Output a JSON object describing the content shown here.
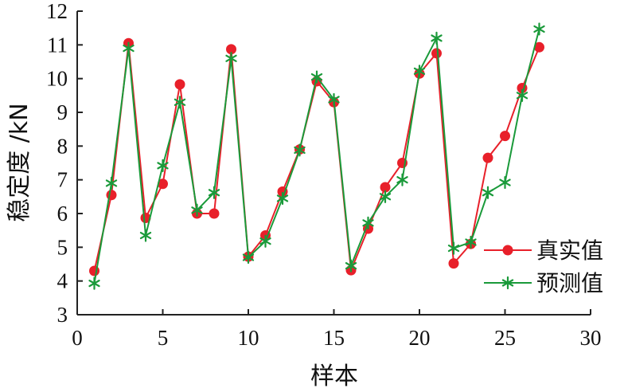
{
  "chart_data": {
    "type": "line",
    "xlabel": "样本",
    "ylabel": "稳定度 /kN",
    "xlim": [
      0,
      30
    ],
    "ylim": [
      3,
      12
    ],
    "xticks": [
      0,
      5,
      10,
      15,
      20,
      25,
      30
    ],
    "yticks": [
      3,
      4,
      5,
      6,
      7,
      8,
      9,
      10,
      11,
      12
    ],
    "grid": false,
    "legend_position": "bottom-right",
    "x": [
      1,
      2,
      3,
      4,
      5,
      6,
      7,
      8,
      9,
      10,
      11,
      12,
      13,
      14,
      15,
      16,
      17,
      18,
      19,
      20,
      21,
      22,
      23,
      24,
      25,
      26,
      27
    ],
    "series": [
      {
        "name": "真实值",
        "color": "#e8202a",
        "marker": "circle",
        "values": [
          4.3,
          6.55,
          11.05,
          5.87,
          6.88,
          9.83,
          6.0,
          6.0,
          10.87,
          4.72,
          5.35,
          6.65,
          7.9,
          9.92,
          9.3,
          4.32,
          5.55,
          6.78,
          7.5,
          10.15,
          10.75,
          4.52,
          5.1,
          7.65,
          8.3,
          9.72,
          10.93
        ]
      },
      {
        "name": "预测值",
        "color": "#1a9a3a",
        "marker": "star",
        "values": [
          3.93,
          6.9,
          10.9,
          5.35,
          7.42,
          9.3,
          6.1,
          6.62,
          10.6,
          4.7,
          5.18,
          6.45,
          7.88,
          10.05,
          9.38,
          4.45,
          5.72,
          6.5,
          7.0,
          10.22,
          11.2,
          4.97,
          5.15,
          6.62,
          6.92,
          9.5,
          11.47
        ]
      }
    ]
  }
}
